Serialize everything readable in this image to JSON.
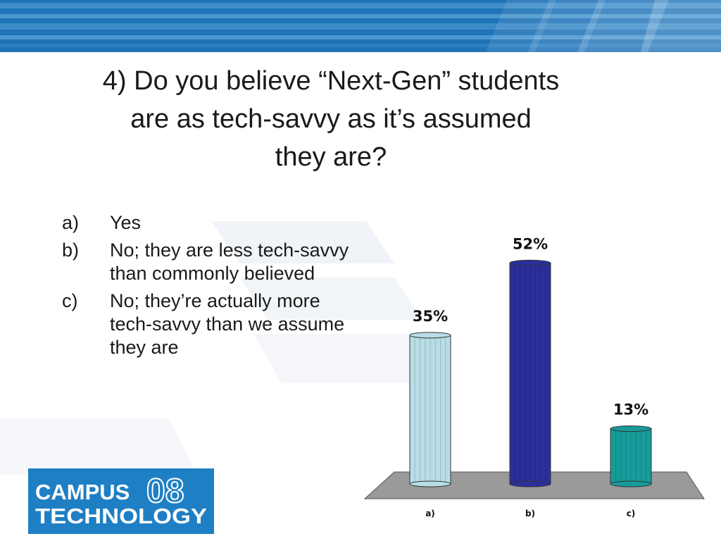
{
  "slide": {
    "title_lines": [
      "4) Do you believe “Next-Gen” students",
      "are as tech-savvy as it’s assumed",
      "they are?"
    ],
    "options": [
      {
        "letter": "a)",
        "text": "Yes"
      },
      {
        "letter": "b)",
        "text": "No; they are less tech-savvy than commonly believed"
      },
      {
        "letter": "c)",
        "text": "No; they’re actually more tech-savvy than we assume they are"
      }
    ]
  },
  "logo": {
    "word1": "CAMPUS",
    "year": "08",
    "word2": "TECHNOLOGY"
  },
  "colors": {
    "banner": "#1f73b7",
    "bar_a": "#b8dde6",
    "bar_b": "#2b2f9c",
    "bar_c": "#169c9a",
    "floor": "#9a9a9a"
  },
  "chart_data": {
    "type": "bar",
    "categories": [
      "a)",
      "b)",
      "c)"
    ],
    "values": [
      35,
      52,
      13
    ],
    "value_labels": [
      "35%",
      "52%",
      "13%"
    ],
    "ylim": [
      0,
      60
    ]
  }
}
